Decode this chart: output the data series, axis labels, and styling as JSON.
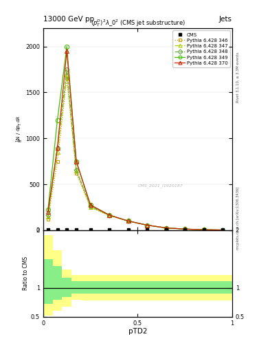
{
  "title_top": "13000 GeV pp",
  "title_right": "Jets",
  "plot_title": "$(p_T^D)^2\\lambda\\_0^2$ (CMS jet substructure)",
  "xlabel": "pTD2",
  "ylabel_ratio": "Ratio to CMS",
  "right_label_top": "Rivet 3.1.10, ≥ 3.3M events",
  "right_label_bottom": "mcplots.cern.ch [arXiv:1306.3436]",
  "watermark": "CMS_2021_I1920187",
  "series_labels": [
    "CMS",
    "Pythia 6.428 346",
    "Pythia 6.428 347",
    "Pythia 6.428 348",
    "Pythia 6.428 349",
    "Pythia 6.428 370"
  ],
  "series_colors": [
    "#000000",
    "#cc9900",
    "#aacc00",
    "#66aa44",
    "#44bb00",
    "#cc2200"
  ],
  "series_markers": [
    "s",
    "s",
    "^",
    "D",
    "o",
    "^"
  ],
  "series_ls": [
    "none",
    "dotted",
    "dashdot",
    "dashed",
    "solid",
    "solid"
  ],
  "x_values": [
    0.025,
    0.075,
    0.125,
    0.175,
    0.25,
    0.35,
    0.45,
    0.55,
    0.65,
    0.75,
    0.85,
    0.95
  ],
  "cms_y": [
    10,
    10,
    10,
    10,
    10,
    10,
    10,
    10,
    10,
    10,
    10,
    10
  ],
  "py346_y": [
    120,
    750,
    1650,
    620,
    250,
    160,
    100,
    55,
    25,
    12,
    5,
    2
  ],
  "py347_y": [
    150,
    850,
    1700,
    650,
    255,
    160,
    100,
    55,
    25,
    12,
    5,
    2
  ],
  "py348_y": [
    160,
    900,
    1750,
    660,
    260,
    162,
    100,
    55,
    25,
    12,
    5,
    2
  ],
  "py349_y": [
    220,
    1200,
    2000,
    750,
    275,
    165,
    100,
    55,
    25,
    12,
    5,
    2
  ],
  "py370_y": [
    200,
    900,
    1950,
    750,
    275,
    165,
    100,
    55,
    25,
    12,
    5,
    2
  ],
  "ylim_main": [
    0,
    2200
  ],
  "ylim_ratio": [
    0.5,
    2.0
  ],
  "xlim": [
    0.0,
    1.0
  ],
  "yticks_main": [
    0,
    500,
    1000,
    1500,
    2000
  ],
  "ratio_x_edges": [
    0.0,
    0.05,
    0.1,
    0.15,
    0.2,
    0.3,
    1.0
  ],
  "yellow_low": [
    0.52,
    0.6,
    0.68,
    0.8,
    0.78,
    0.78
  ],
  "yellow_high": [
    1.92,
    1.65,
    1.32,
    1.22,
    1.22,
    1.22
  ],
  "green_low": [
    0.72,
    0.8,
    0.84,
    0.9,
    0.9,
    0.9
  ],
  "green_high": [
    1.5,
    1.38,
    1.18,
    1.12,
    1.12,
    1.12
  ],
  "bg_color": "#ffffff"
}
